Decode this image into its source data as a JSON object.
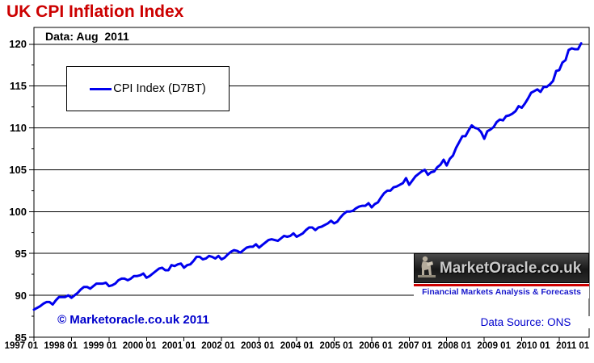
{
  "title": "UK CPI Inflation Index",
  "data_label": "Data: Aug  2011",
  "legend": {
    "label": "CPI Index (D7BT)"
  },
  "copyright": "© Marketoracle.co.uk 2011",
  "data_source": "Data Source: ONS",
  "logo": {
    "brand": "MarketOracle.co.uk",
    "tagline": "Financial Markets Analysis & Forecasts",
    "statue_icon": "seated-oracle-statue-icon"
  },
  "colors": {
    "title_red": "#CC0000",
    "line_blue": "#0000EE",
    "annotation_blue": "#0000CC",
    "tagline_blue": "#1a1acc",
    "stripe_red": "#CC0000",
    "grid": "#000000"
  },
  "chart_data": {
    "type": "line",
    "title": "UK CPI Inflation Index",
    "xlabel": "",
    "ylabel": "",
    "ylim": [
      85,
      122
    ],
    "yticks": [
      85,
      90,
      95,
      100,
      105,
      110,
      115,
      120
    ],
    "y_minor_tick_step": 2.5,
    "grid": "horizontal",
    "legend_position": "top-left-inside",
    "xticklabels": [
      "1997 01",
      "1998 01",
      "1999 01",
      "2000 01",
      "2001 01",
      "2002 01",
      "2003 01",
      "2004 01",
      "2005 01",
      "2006 01",
      "2007 01",
      "2008 01",
      "2009 01",
      "2010 01",
      "2011 01"
    ],
    "x_start": "1997-01",
    "x_end": "2011-08",
    "frequency": "monthly",
    "series": [
      {
        "name": "CPI Index (D7BT)",
        "color": "#0000EE",
        "values": [
          88.3,
          88.5,
          88.7,
          89.0,
          89.2,
          89.2,
          88.9,
          89.4,
          89.8,
          89.8,
          89.8,
          90.0,
          89.7,
          90.0,
          90.3,
          90.7,
          91.0,
          91.0,
          90.8,
          91.1,
          91.4,
          91.4,
          91.4,
          91.5,
          91.1,
          91.2,
          91.4,
          91.8,
          92.0,
          92.0,
          91.8,
          92.0,
          92.3,
          92.3,
          92.4,
          92.6,
          92.1,
          92.3,
          92.6,
          92.9,
          93.2,
          93.3,
          93.0,
          93.0,
          93.6,
          93.5,
          93.7,
          93.8,
          93.3,
          93.6,
          93.7,
          94.1,
          94.6,
          94.6,
          94.3,
          94.4,
          94.7,
          94.6,
          94.4,
          94.7,
          94.3,
          94.5,
          94.9,
          95.2,
          95.4,
          95.3,
          95.1,
          95.4,
          95.7,
          95.8,
          95.8,
          96.1,
          95.7,
          96.0,
          96.3,
          96.6,
          96.7,
          96.6,
          96.5,
          96.8,
          97.1,
          97.0,
          97.1,
          97.4,
          97.0,
          97.2,
          97.4,
          97.8,
          98.1,
          98.1,
          97.8,
          98.1,
          98.2,
          98.4,
          98.6,
          98.9,
          98.6,
          98.8,
          99.3,
          99.7,
          100.0,
          100.0,
          100.1,
          100.4,
          100.6,
          100.7,
          100.7,
          101.0,
          100.5,
          100.9,
          101.1,
          101.7,
          102.2,
          102.5,
          102.5,
          102.9,
          103.0,
          103.2,
          103.4,
          104.0,
          103.2,
          103.7,
          104.2,
          104.5,
          104.8,
          105.0,
          104.4,
          104.7,
          104.8,
          105.3,
          105.6,
          106.2,
          105.5,
          106.3,
          106.7,
          107.6,
          108.3,
          109.0,
          109.0,
          109.7,
          110.3,
          110.0,
          109.9,
          109.5,
          108.7,
          109.6,
          109.8,
          110.1,
          110.7,
          111.0,
          110.9,
          111.4,
          111.5,
          111.7,
          112.0,
          112.6,
          112.4,
          112.9,
          113.5,
          114.2,
          114.4,
          114.6,
          114.3,
          114.9,
          114.9,
          115.2,
          115.6,
          116.8,
          116.9,
          117.8,
          118.1,
          119.3,
          119.5,
          119.4,
          119.4,
          120.1
        ]
      }
    ]
  }
}
